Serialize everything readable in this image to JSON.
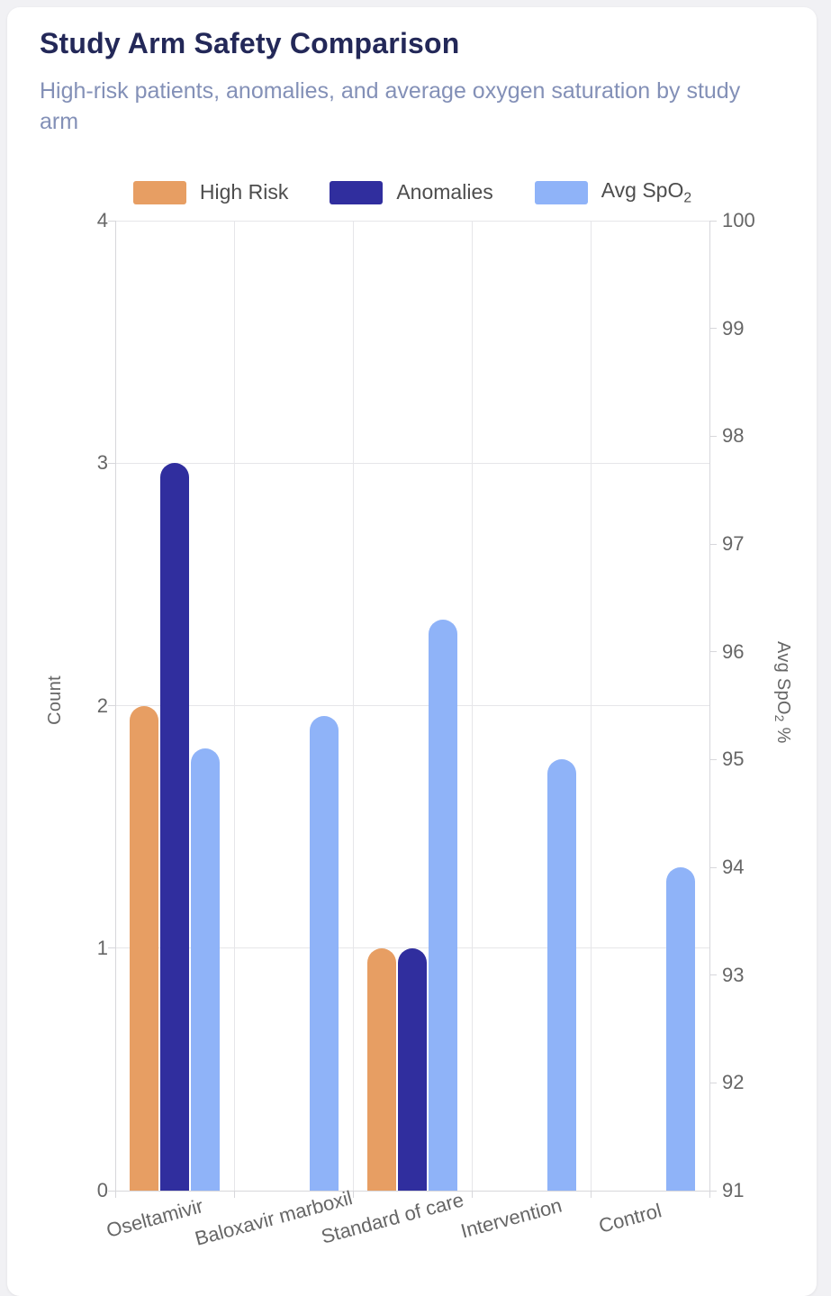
{
  "header": {
    "title": "Study Arm Safety Comparison",
    "subtitle": "High-risk patients, anomalies, and average oxygen saturation by study arm"
  },
  "colors": {
    "page_background": "#f1f1f4",
    "card_background": "#ffffff",
    "title_text": "#232858",
    "subtitle_text": "#8390b7",
    "axis_text": "#666666",
    "gridline": "#e6e6e9",
    "high_risk": "#e79e63",
    "anomalies": "#302e9e",
    "avg_spo2": "#8fb3f8"
  },
  "chart_data": {
    "type": "bar",
    "categories": [
      "Oseltamivir",
      "Baloxavir marboxil",
      "Standard of care",
      "Intervention",
      "Control"
    ],
    "series": [
      {
        "name": "High Risk",
        "axis": "left",
        "color": "#e79e63",
        "values": [
          2,
          0,
          1,
          0,
          0
        ]
      },
      {
        "name": "Anomalies",
        "axis": "left",
        "color": "#302e9e",
        "values": [
          3,
          0,
          1,
          0,
          0
        ]
      },
      {
        "name": "Avg SpO2",
        "name_prefix": "Avg SpO",
        "name_sub": "2",
        "axis": "right",
        "color": "#8fb3f8",
        "values": [
          95.1,
          95.4,
          96.3,
          95.0,
          94.0
        ]
      }
    ],
    "left_axis": {
      "label": "Count",
      "min": 0,
      "max": 4,
      "ticks": [
        0,
        1,
        2,
        3,
        4
      ]
    },
    "right_axis": {
      "label_prefix": "Avg SpO",
      "label_sub": "2",
      "label_suffix": " %",
      "min": 91,
      "max": 100,
      "ticks": [
        91,
        92,
        93,
        94,
        95,
        96,
        97,
        98,
        99,
        100
      ]
    },
    "grid": true,
    "legend_position": "top",
    "title": "Study Arm Safety Comparison",
    "xlabel": "",
    "ylabel_left": "Count",
    "ylabel_right": "Avg SpO2 %"
  }
}
